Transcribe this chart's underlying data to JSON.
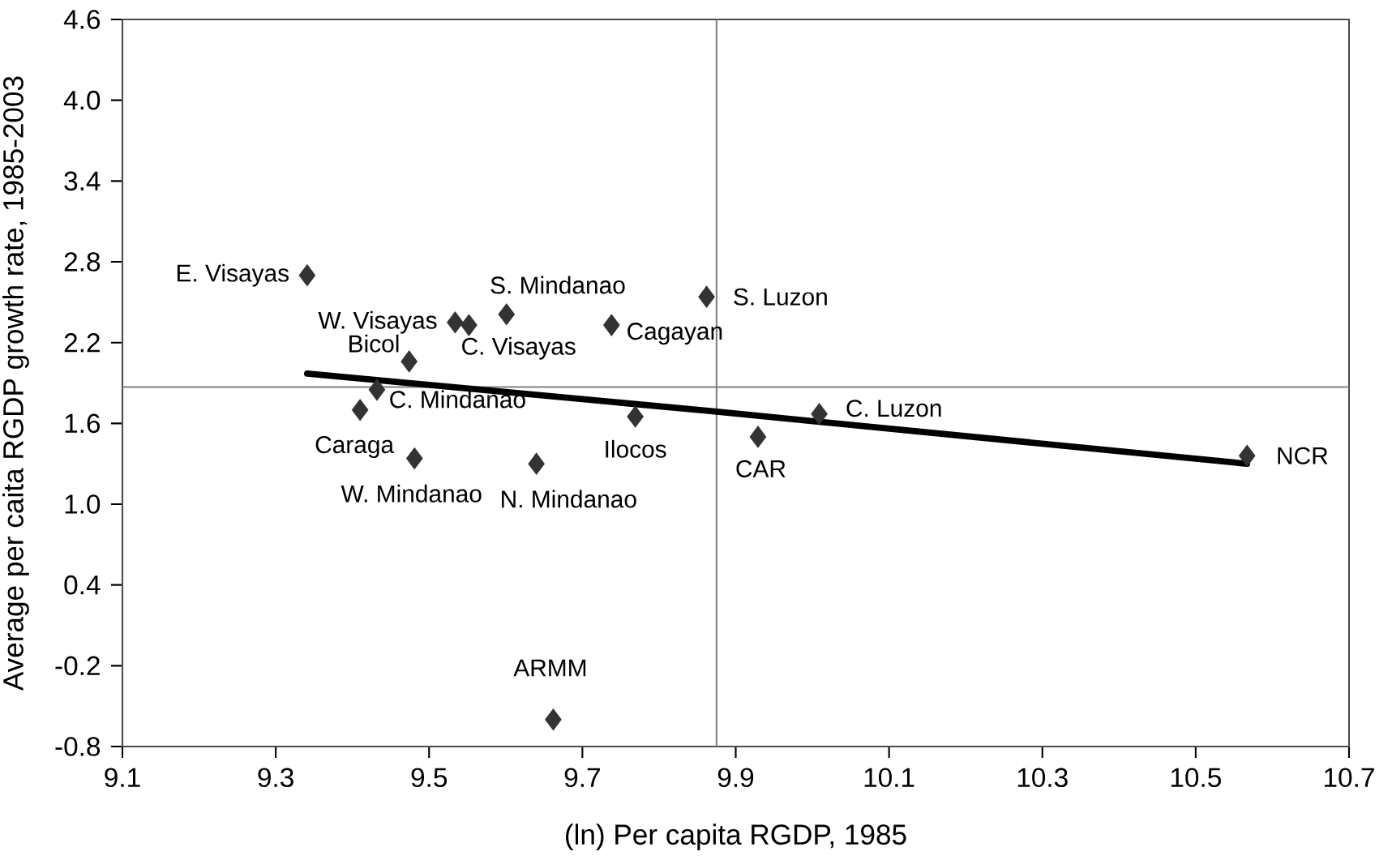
{
  "chart_data": {
    "type": "scatter",
    "xlabel": "(ln) Per capita RGDP, 1985",
    "ylabel": "Average per caita RGDP growth rate, 1985-2003",
    "xlim": [
      9.1,
      10.7
    ],
    "xticks": [
      9.1,
      9.3,
      9.5,
      9.7,
      9.9,
      10.1,
      10.3,
      10.5,
      10.7
    ],
    "ylim": [
      -0.8,
      4.6
    ],
    "yticks": [
      -0.8,
      -0.2,
      0.4,
      {
        "value": 1.0,
        "label": "1.0"
      },
      1.6,
      2.2,
      2.8,
      3.4,
      {
        "value": 4.0,
        "label": "4.0"
      },
      4.6
    ],
    "grid": false,
    "series": [
      {
        "color": "#333333",
        "marker": "diamond",
        "x": [
          9.341,
          9.534,
          9.552,
          9.601,
          9.738,
          9.862,
          9.474,
          9.432,
          9.41,
          9.481,
          9.64,
          9.769,
          9.929,
          10.009,
          10.567,
          9.662
        ],
        "values": [
          2.7,
          2.35,
          2.33,
          2.41,
          2.33,
          2.54,
          2.06,
          1.85,
          1.7,
          1.34,
          1.3,
          1.65,
          1.5,
          1.67,
          1.36,
          -0.6
        ]
      },
      {
        "type": "line",
        "color": "#000000",
        "marker": "none",
        "x": [
          9.341,
          9.87,
          10.567
        ],
        "values": [
          1.97,
          1.69,
          1.3
        ]
      }
    ],
    "ref_lines": [
      {
        "axis": "x",
        "value": 9.875,
        "color": "#808080"
      },
      {
        "axis": "y",
        "value": 1.87,
        "color": "#808080"
      }
    ],
    "annotations": [
      {
        "text": "E. Visayas",
        "x": 9.341,
        "y": 2.7
      },
      {
        "text": "W. Visayas",
        "x": 9.534,
        "y": 2.35
      },
      {
        "text": "C. Visayas",
        "x": 9.552,
        "y": 2.33
      },
      {
        "text": "S. Mindanao",
        "x": 9.601,
        "y": 2.41
      },
      {
        "text": "Cagayan",
        "x": 9.738,
        "y": 2.33
      },
      {
        "text": "S. Luzon",
        "x": 9.862,
        "y": 2.54
      },
      {
        "text": "Bicol",
        "x": 9.474,
        "y": 2.06
      },
      {
        "text": "C. Mindanao",
        "x": 9.432,
        "y": 1.85
      },
      {
        "text": "Caraga",
        "x": 9.41,
        "y": 1.7
      },
      {
        "text": "W. Mindanao",
        "x": 9.481,
        "y": 1.34
      },
      {
        "text": "N. Mindanao",
        "x": 9.64,
        "y": 1.3
      },
      {
        "text": "Ilocos",
        "x": 9.769,
        "y": 1.65
      },
      {
        "text": "CAR",
        "x": 9.929,
        "y": 1.5
      },
      {
        "text": "C. Luzon",
        "x": 10.009,
        "y": 1.67
      },
      {
        "text": "NCR",
        "x": 10.567,
        "y": 1.36
      },
      {
        "text": "ARMM",
        "x": 9.662,
        "y": -0.6
      }
    ]
  }
}
